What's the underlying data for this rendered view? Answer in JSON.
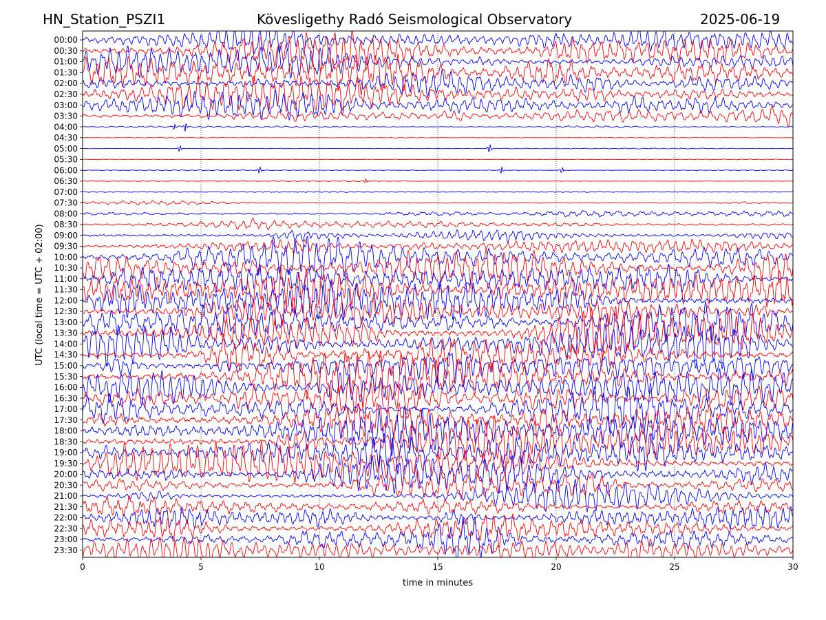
{
  "header": {
    "station": "HN_Station_PSZI1",
    "title": "Kövesligethy Radó Seismological Observatory",
    "date": "2025-06-19"
  },
  "chart_data": {
    "type": "line",
    "xlabel": "time in minutes",
    "ylabel": "UTC (local time = UTC + 02:00)",
    "xlim": [
      0,
      30
    ],
    "x_ticks": [
      0,
      5,
      10,
      15,
      20,
      25,
      30
    ],
    "grid": "vertical dotted lines at every 5 minutes",
    "colors": {
      "even_rows": "#0000ff",
      "odd_rows": "#ff0000"
    },
    "rows": [
      {
        "label": "00:00",
        "activity": 0.75
      },
      {
        "label": "00:30",
        "activity": 0.85
      },
      {
        "label": "01:00",
        "activity": 0.8
      },
      {
        "label": "01:30",
        "activity": 0.85
      },
      {
        "label": "02:00",
        "activity": 0.8
      },
      {
        "label": "02:30",
        "activity": 0.75
      },
      {
        "label": "03:00",
        "activity": 0.7
      },
      {
        "label": "03:30",
        "activity": 0.5
      },
      {
        "label": "04:00",
        "activity": 0.12
      },
      {
        "label": "04:30",
        "activity": 0.04
      },
      {
        "label": "05:00",
        "activity": 0.04
      },
      {
        "label": "05:30",
        "activity": 0.03
      },
      {
        "label": "06:00",
        "activity": 0.05
      },
      {
        "label": "06:30",
        "activity": 0.04
      },
      {
        "label": "07:00",
        "activity": 0.06
      },
      {
        "label": "07:30",
        "activity": 0.12
      },
      {
        "label": "08:00",
        "activity": 0.3
      },
      {
        "label": "08:30",
        "activity": 0.3
      },
      {
        "label": "09:00",
        "activity": 0.4
      },
      {
        "label": "09:30",
        "activity": 0.5
      },
      {
        "label": "10:00",
        "activity": 0.7
      },
      {
        "label": "10:30",
        "activity": 0.9
      },
      {
        "label": "11:00",
        "activity": 0.9
      },
      {
        "label": "11:30",
        "activity": 1.0
      },
      {
        "label": "12:00",
        "activity": 1.0
      },
      {
        "label": "12:30",
        "activity": 1.0
      },
      {
        "label": "13:00",
        "activity": 1.0
      },
      {
        "label": "13:30",
        "activity": 1.0
      },
      {
        "label": "14:00",
        "activity": 1.0
      },
      {
        "label": "14:30",
        "activity": 1.0
      },
      {
        "label": "15:00",
        "activity": 1.0
      },
      {
        "label": "15:30",
        "activity": 1.0
      },
      {
        "label": "16:00",
        "activity": 1.0
      },
      {
        "label": "16:30",
        "activity": 1.0
      },
      {
        "label": "17:00",
        "activity": 0.95
      },
      {
        "label": "17:30",
        "activity": 0.95
      },
      {
        "label": "18:00",
        "activity": 0.95
      },
      {
        "label": "18:30",
        "activity": 0.95
      },
      {
        "label": "19:00",
        "activity": 0.95
      },
      {
        "label": "19:30",
        "activity": 0.9
      },
      {
        "label": "20:00",
        "activity": 0.9
      },
      {
        "label": "20:30",
        "activity": 0.8
      },
      {
        "label": "21:00",
        "activity": 0.55
      },
      {
        "label": "21:30",
        "activity": 0.55
      },
      {
        "label": "22:00",
        "activity": 0.75
      },
      {
        "label": "22:30",
        "activity": 0.75
      },
      {
        "label": "23:00",
        "activity": 0.75
      },
      {
        "label": "23:30",
        "activity": 0.8
      }
    ]
  }
}
